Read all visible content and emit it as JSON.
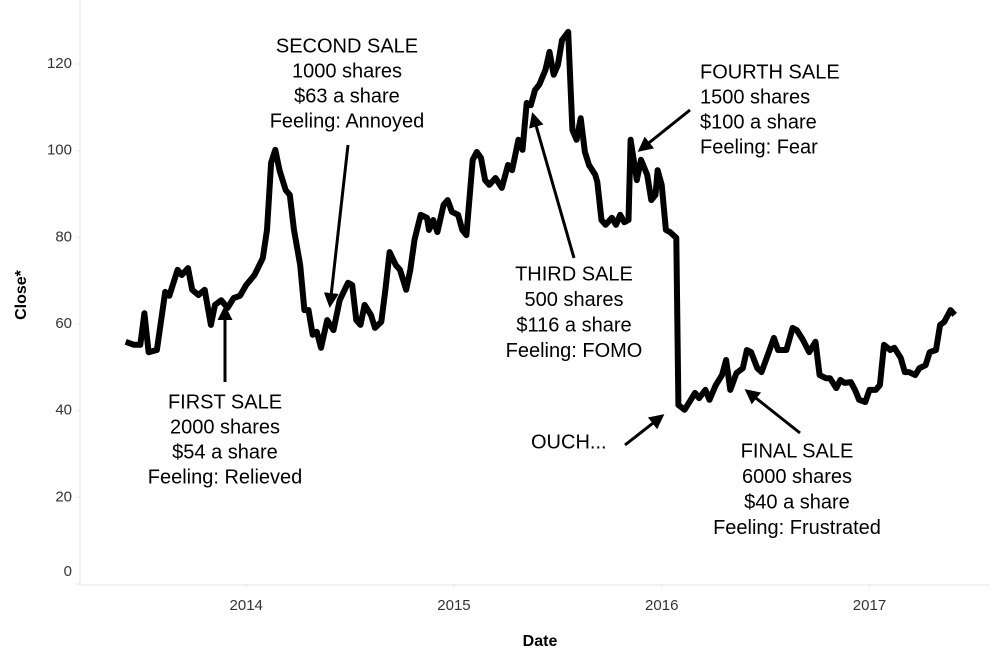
{
  "chart_data": {
    "type": "line",
    "x_label": "Date",
    "y_label": "Close*",
    "xlim": [
      2013.2,
      2017.58
    ],
    "xticks": [
      2014,
      2015,
      2016,
      2017
    ],
    "ylim": [
      0,
      132
    ],
    "yticks": [
      0,
      20,
      40,
      60,
      80,
      100,
      120
    ],
    "series": [
      {
        "color": "#000000",
        "x": [
          2013.42,
          2013.46,
          2013.49,
          2013.51,
          2013.53,
          2013.57,
          2013.61,
          2013.63,
          2013.67,
          2013.69,
          2013.72,
          2013.74,
          2013.77,
          2013.8,
          2013.83,
          2013.85,
          2013.88,
          2013.91,
          2013.94,
          2013.97,
          2014.0,
          2014.04,
          2014.08,
          2014.1,
          2014.12,
          2014.14,
          2014.16,
          2014.19,
          2014.21,
          2014.23,
          2014.26,
          2014.28,
          2014.3,
          2014.32,
          2014.34,
          2014.36,
          2014.39,
          2014.42,
          2014.45,
          2014.49,
          2014.51,
          2014.53,
          2014.55,
          2014.57,
          2014.6,
          2014.62,
          2014.65,
          2014.67,
          2014.69,
          2014.72,
          2014.74,
          2014.77,
          2014.79,
          2014.81,
          2014.84,
          2014.87,
          2014.88,
          2014.9,
          2014.92,
          2014.95,
          2014.97,
          2014.99,
          2015.02,
          2015.04,
          2015.06,
          2015.09,
          2015.11,
          2015.13,
          2015.15,
          2015.17,
          2015.2,
          2015.23,
          2015.26,
          2015.28,
          2015.31,
          2015.33,
          2015.35,
          2015.37,
          2015.39,
          2015.41,
          2015.44,
          2015.46,
          2015.48,
          2015.5,
          2015.52,
          2015.55,
          2015.57,
          2015.59,
          2015.61,
          2015.63,
          2015.65,
          2015.68,
          2015.69,
          2015.71,
          2015.73,
          2015.76,
          2015.78,
          2015.8,
          2015.82,
          2015.84,
          2015.85,
          2015.88,
          2015.9,
          2015.93,
          2015.95,
          2015.97,
          2015.98,
          2016.0,
          2016.02,
          2016.04,
          2016.07,
          2016.08,
          2016.11,
          2016.14,
          2016.16,
          2016.18,
          2016.21,
          2016.23,
          2016.26,
          2016.29,
          2016.31,
          2016.33,
          2016.36,
          2016.39,
          2016.41,
          2016.43,
          2016.46,
          2016.48,
          2016.51,
          2016.54,
          2016.56,
          2016.6,
          2016.63,
          2016.65,
          2016.68,
          2016.71,
          2016.74,
          2016.76,
          2016.79,
          2016.81,
          2016.84,
          2016.86,
          2016.88,
          2016.91,
          2016.93,
          2016.95,
          2016.98,
          2017.0,
          2017.03,
          2017.05,
          2017.07,
          2017.1,
          2017.12,
          2017.15,
          2017.17,
          2017.19,
          2017.22,
          2017.24,
          2017.27,
          2017.29,
          2017.32,
          2017.34,
          2017.36,
          2017.39,
          2017.41
        ],
        "values": [
          55.9,
          55.2,
          55.2,
          62.5,
          53.5,
          54,
          67.4,
          66.5,
          72.5,
          71.3,
          72.9,
          67.9,
          66.7,
          67.9,
          59.8,
          64.4,
          65.5,
          63.7,
          66,
          66.5,
          69,
          71.3,
          75.2,
          81.7,
          97.2,
          100.2,
          95.5,
          90.9,
          89.8,
          81.7,
          73.6,
          63.2,
          63.2,
          57.5,
          58.2,
          54.5,
          60.9,
          58.6,
          65.5,
          69.5,
          69,
          60.9,
          59.8,
          64.4,
          62.1,
          59.1,
          60.5,
          67.9,
          76.6,
          73.6,
          72.5,
          67.9,
          72.5,
          79.4,
          85.2,
          84.5,
          81.7,
          84,
          81.2,
          87.5,
          88.6,
          85.9,
          85.2,
          81.7,
          80.5,
          97.9,
          99.7,
          98.3,
          93.2,
          92.1,
          93.7,
          91.4,
          96.7,
          95.5,
          102.5,
          100.2,
          111,
          110.5,
          114,
          115.2,
          118.6,
          122.8,
          117.5,
          119.8,
          125.5,
          127.4,
          104.8,
          102.5,
          107.5,
          99.7,
          96.7,
          94.4,
          92.8,
          84,
          82.9,
          84.5,
          82.9,
          85.2,
          83.5,
          84,
          102.5,
          93.2,
          97.9,
          94.4,
          88.6,
          89.8,
          95.5,
          92.1,
          81.7,
          81.2,
          79.9,
          41.3,
          40.2,
          42.5,
          44.1,
          42.9,
          44.8,
          42.5,
          45.9,
          48.2,
          51.7,
          44.8,
          48.7,
          49.8,
          54,
          53.5,
          49.8,
          48.9,
          52.8,
          56.8,
          54,
          54,
          59.1,
          58.6,
          56.3,
          53.5,
          55.9,
          48.2,
          47.5,
          47.5,
          45.2,
          47.1,
          46.4,
          46.6,
          44.8,
          42.5,
          42,
          44.8,
          44.8,
          45.9,
          55.2,
          54,
          54.5,
          52.2,
          48.9,
          48.9,
          48.2,
          49.8,
          50.5,
          53.5,
          54,
          59.8,
          60.5,
          63.2,
          62.1
        ]
      }
    ],
    "annotations": [
      {
        "lines": [
          "FIRST SALE",
          "2000 shares",
          "$54 a share",
          "Feeling: Relieved"
        ]
      },
      {
        "lines": [
          "SECOND SALE",
          "1000 shares",
          "$63 a share",
          "Feeling: Annoyed"
        ]
      },
      {
        "lines": [
          "THIRD SALE",
          "500 shares",
          "$116 a share",
          "Feeling: FOMO"
        ]
      },
      {
        "lines": [
          "FOURTH SALE",
          "1500 shares",
          "$100 a share",
          "Feeling: Fear"
        ]
      },
      {
        "lines": [
          "OUCH..."
        ]
      },
      {
        "lines": [
          "FINAL SALE",
          "6000 shares",
          "$40 a share",
          "Feeling: Frustrated"
        ]
      }
    ]
  }
}
